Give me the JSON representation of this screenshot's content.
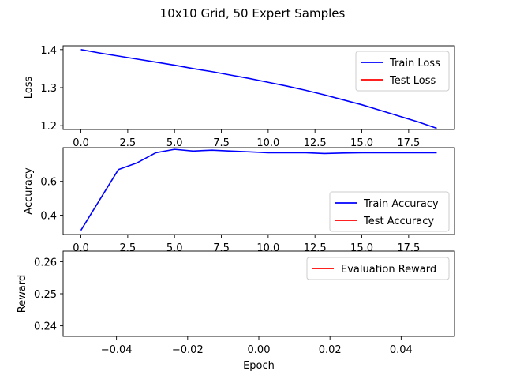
{
  "figure": {
    "title": "10x10 Grid, 50 Expert Samples"
  },
  "colors": {
    "train": "#0000ff",
    "test": "#ff0000",
    "eval": "#ff0000",
    "axes": "#000000",
    "legend_border": "#cccccc"
  },
  "chart_data": [
    {
      "type": "line",
      "xlabel": "",
      "ylabel": "Loss",
      "xlim": [
        -0.95,
        19.95
      ],
      "ylim": [
        1.19,
        1.41
      ],
      "xticks": [
        0.0,
        2.5,
        5.0,
        7.5,
        10.0,
        12.5,
        15.0,
        17.5
      ],
      "xtick_labels": [
        "0.0",
        "2.5",
        "5.0",
        "7.5",
        "10.0",
        "12.5",
        "15.0",
        "17.5"
      ],
      "yticks": [
        1.2,
        1.3,
        1.4
      ],
      "ytick_labels": [
        "1.2",
        "1.3",
        "1.4"
      ],
      "legend_position": "top-right",
      "grid": false,
      "series": [
        {
          "name": "Train Loss",
          "color": "#0000ff",
          "x": [
            0,
            1,
            2,
            3,
            4,
            5,
            6,
            7,
            8,
            9,
            10,
            11,
            12,
            13,
            14,
            15,
            16,
            17,
            18,
            19
          ],
          "y": [
            1.4,
            1.391,
            1.383,
            1.375,
            1.367,
            1.359,
            1.35,
            1.342,
            1.333,
            1.324,
            1.314,
            1.304,
            1.293,
            1.281,
            1.268,
            1.255,
            1.24,
            1.225,
            1.21,
            1.193
          ]
        },
        {
          "name": "Test Loss",
          "color": "#ff0000",
          "x": [],
          "y": []
        }
      ]
    },
    {
      "type": "line",
      "xlabel": "",
      "ylabel": "Accuracy",
      "xlim": [
        -0.95,
        19.95
      ],
      "ylim": [
        0.285,
        0.8
      ],
      "xticks": [
        0.0,
        2.5,
        5.0,
        7.5,
        10.0,
        12.5,
        15.0,
        17.5
      ],
      "xtick_labels": [
        "0.0",
        "2.5",
        "5.0",
        "7.5",
        "10.0",
        "12.5",
        "15.0",
        "17.5"
      ],
      "yticks": [
        0.4,
        0.6
      ],
      "ytick_labels": [
        "0.4",
        "0.6"
      ],
      "legend_position": "lower-right",
      "grid": false,
      "series": [
        {
          "name": "Train Accuracy",
          "color": "#0000ff",
          "x": [
            0,
            1,
            2,
            3,
            4,
            5,
            6,
            7,
            8,
            9,
            10,
            11,
            12,
            13,
            14,
            15,
            16,
            17,
            18,
            19
          ],
          "y": [
            0.31,
            0.49,
            0.67,
            0.71,
            0.77,
            0.79,
            0.78,
            0.785,
            0.78,
            0.775,
            0.77,
            0.77,
            0.77,
            0.765,
            0.768,
            0.77,
            0.77,
            0.77,
            0.77,
            0.77
          ]
        },
        {
          "name": "Test Accuracy",
          "color": "#ff0000",
          "x": [],
          "y": []
        }
      ]
    },
    {
      "type": "line",
      "xlabel": "Epoch",
      "ylabel": "Reward",
      "xlim": [
        -0.055,
        0.055
      ],
      "ylim": [
        0.2367,
        0.2633
      ],
      "xticks": [
        -0.04,
        -0.02,
        0.0,
        0.02,
        0.04
      ],
      "xtick_labels": [
        "−0.04",
        "−0.02",
        "0.00",
        "0.02",
        "0.04"
      ],
      "yticks": [
        0.24,
        0.25,
        0.26
      ],
      "ytick_labels": [
        "0.24",
        "0.25",
        "0.26"
      ],
      "legend_position": "top-right",
      "grid": false,
      "series": [
        {
          "name": "Evaluation Reward",
          "color": "#ff0000",
          "x": [],
          "y": []
        }
      ]
    }
  ]
}
